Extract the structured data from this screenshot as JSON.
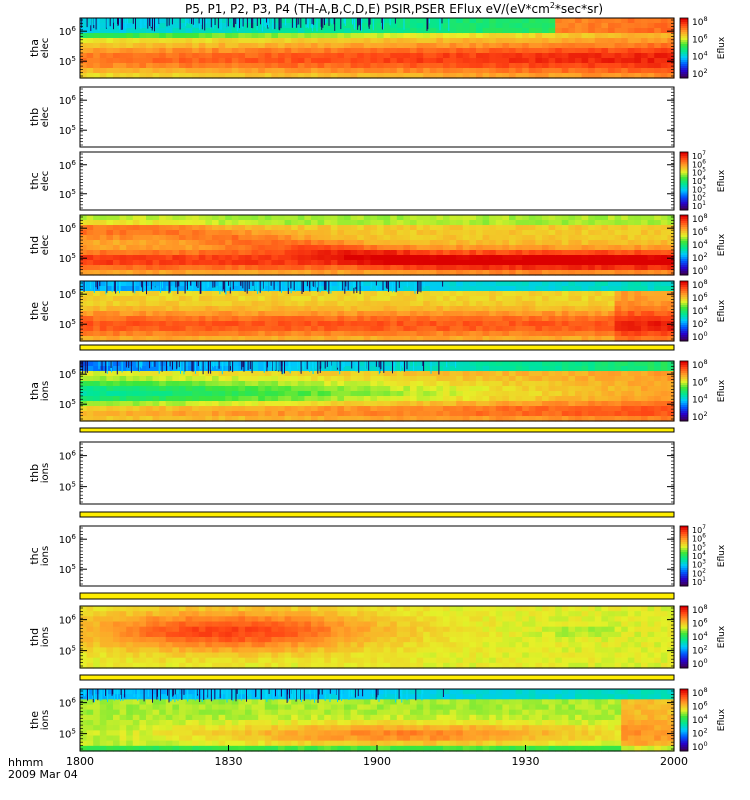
{
  "title": "P5, P1, P2, P3, P4 (TH-A,B,C,D,E) PSIR,PSER EFlux eV/(eV*cm^2*sec*sr)",
  "time_axis": {
    "ticks": [
      "1800",
      "1830",
      "1900",
      "1930",
      "2000"
    ],
    "corner_label_top": "hhmm",
    "corner_label_bottom": "2009 Mar 04"
  },
  "colorbar_label": "Eflux",
  "panels": [
    {
      "id": "tha-elec",
      "name_top": "tha",
      "name_bottom": "elec",
      "has_data": true,
      "y_ticks": [
        "10^6",
        "10^5"
      ],
      "colorbar_ticks": [
        "10^8",
        "10^6",
        "10^4",
        "10^2"
      ],
      "profile": "tha"
    },
    {
      "id": "thb-elec",
      "name_top": "thb",
      "name_bottom": "elec",
      "has_data": false,
      "y_ticks": [
        "10^6",
        "10^5"
      ],
      "colorbar_ticks": []
    },
    {
      "id": "thc-elec",
      "name_top": "thc",
      "name_bottom": "elec",
      "has_data": false,
      "y_ticks": [
        "10^6",
        "10^5"
      ],
      "colorbar_ticks": [
        "10^7",
        "10^6",
        "10^5",
        "10^4",
        "10^3",
        "10^2",
        "10^1"
      ]
    },
    {
      "id": "thd-elec",
      "name_top": "thd",
      "name_bottom": "elec",
      "has_data": true,
      "y_ticks": [
        "10^6",
        "10^5"
      ],
      "colorbar_ticks": [
        "10^8",
        "10^6",
        "10^4",
        "10^2",
        "10^0"
      ],
      "profile": "thd_e"
    },
    {
      "id": "the-elec",
      "name_top": "the",
      "name_bottom": "elec",
      "has_data": true,
      "y_ticks": [
        "10^6",
        "10^5"
      ],
      "colorbar_ticks": [
        "10^8",
        "10^6",
        "10^4",
        "10^2",
        "10^0"
      ],
      "profile": "the"
    },
    {
      "id": "tha-ions",
      "name_top": "tha",
      "name_bottom": "ions",
      "has_data": true,
      "y_ticks": [
        "10^6",
        "10^5"
      ],
      "colorbar_ticks": [
        "10^8",
        "10^6",
        "10^4",
        "10^2"
      ],
      "profile": "tha_i"
    },
    {
      "id": "thb-ions",
      "name_top": "thb",
      "name_bottom": "ions",
      "has_data": false,
      "y_ticks": [
        "10^6",
        "10^5"
      ],
      "colorbar_ticks": []
    },
    {
      "id": "thc-ions",
      "name_top": "thc",
      "name_bottom": "ions",
      "has_data": false,
      "y_ticks": [
        "10^6",
        "10^5"
      ],
      "colorbar_ticks": [
        "10^7",
        "10^6",
        "10^5",
        "10^4",
        "10^3",
        "10^2",
        "10^1"
      ]
    },
    {
      "id": "thd-ions",
      "name_top": "thd",
      "name_bottom": "ions",
      "has_data": true,
      "y_ticks": [
        "10^6",
        "10^5"
      ],
      "colorbar_ticks": [
        "10^8",
        "10^6",
        "10^4",
        "10^2",
        "10^0"
      ],
      "profile": "thd_i"
    },
    {
      "id": "the-ions",
      "name_top": "the",
      "name_bottom": "ions",
      "has_data": true,
      "y_ticks": [
        "10^6",
        "10^5"
      ],
      "colorbar_ticks": [
        "10^8",
        "10^6",
        "10^4",
        "10^2",
        "10^0"
      ],
      "profile": "the_i"
    }
  ],
  "chart_data": {
    "type": "heatmap",
    "title": "P5, P1, P2, P3, P4 (TH-A,B,C,D,E) PSIR,PSER EFlux eV/(eV*cm^2*sec*sr)",
    "x_range": [
      "18:00",
      "20:00"
    ],
    "x_ticks": [
      "1800",
      "1830",
      "1900",
      "1930",
      "2000"
    ],
    "y_scale": "log",
    "y_ticks": [
      "10^5",
      "10^6"
    ],
    "colorbar": {
      "label": "Eflux",
      "scale": "log",
      "colormap": "rainbow (purple-blue-cyan-green-yellow-orange-red)"
    },
    "series": [
      {
        "name": "tha elec",
        "data": true
      },
      {
        "name": "thb elec",
        "data": false
      },
      {
        "name": "thc elec",
        "data": false
      },
      {
        "name": "thd elec",
        "data": true
      },
      {
        "name": "the elec",
        "data": true
      },
      {
        "name": "tha ions",
        "data": true
      },
      {
        "name": "thb ions",
        "data": false
      },
      {
        "name": "thc ions",
        "data": false
      },
      {
        "name": "thd ions",
        "data": true
      },
      {
        "name": "the ions",
        "data": true
      }
    ]
  }
}
